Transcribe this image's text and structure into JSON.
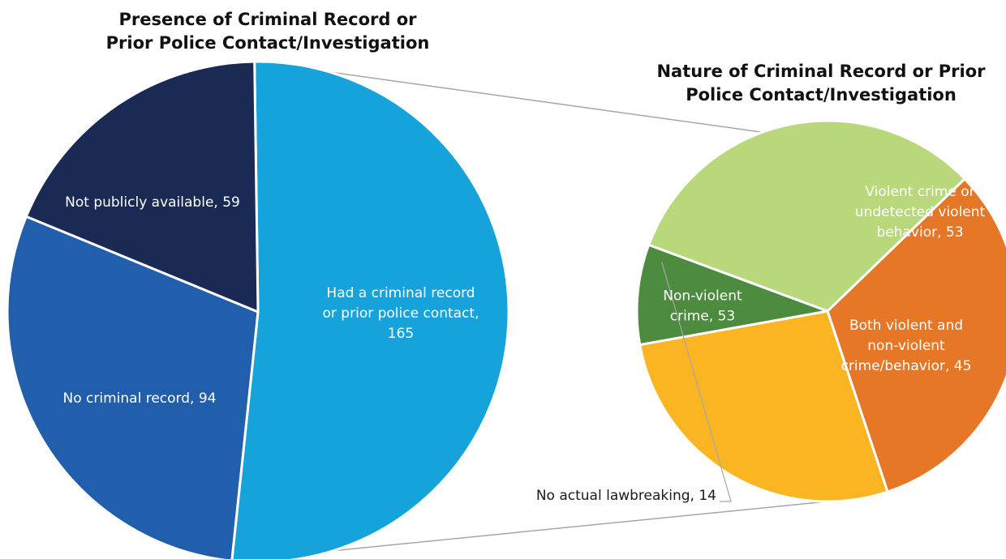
{
  "chart_data": [
    {
      "type": "pie",
      "title": "Presence of Criminal Record or Prior Police Contact/Investigation",
      "title_lines": [
        "Presence of Criminal Record or",
        "Prior Police Contact/Investigation"
      ],
      "slices": [
        {
          "label": "Had a criminal record or prior police contact",
          "value": 165,
          "label_lines": [
            "Had a criminal record",
            "or prior police contact,",
            "165"
          ],
          "color": "#16a3dc",
          "text_color": "#ffffff"
        },
        {
          "label": "No criminal record",
          "value": 94,
          "label_lines": [
            "No criminal record, 94"
          ],
          "color": "#215fad",
          "text_color": "#ffffff"
        },
        {
          "label": "Not publicly available",
          "value": 59,
          "label_lines": [
            "Not publicly available, 59"
          ],
          "color": "#1a2a54",
          "text_color": "#ffffff"
        }
      ]
    },
    {
      "type": "pie",
      "title": "Nature of Criminal Record or Prior Police Contact/Investigation",
      "title_lines": [
        "Nature of Criminal Record or Prior",
        "Police Contact/Investigation"
      ],
      "slices": [
        {
          "label": "Violent crime or undetected violent behavior",
          "value": 53,
          "label_lines": [
            "Violent crime or",
            "undetected violent",
            "behavior, 53"
          ],
          "color": "#e57726",
          "text_color": "#ffffff"
        },
        {
          "label": "Both violent and non-violent crime/behavior",
          "value": 45,
          "label_lines": [
            "Both violent and",
            "non-violent",
            "crime/behavior, 45"
          ],
          "color": "#fbb522",
          "text_color": "#ffffff"
        },
        {
          "label": "No actual lawbreaking",
          "value": 14,
          "label_lines": [
            "No actual lawbreaking, 14"
          ],
          "color": "#4d8b3f",
          "text_color": "#1a1a1a"
        },
        {
          "label": "Non-violent crime",
          "value": 53,
          "label_lines": [
            "Non-violent",
            "crime, 53"
          ],
          "color": "#b9d77b",
          "text_color": "#ffffff"
        }
      ]
    }
  ]
}
